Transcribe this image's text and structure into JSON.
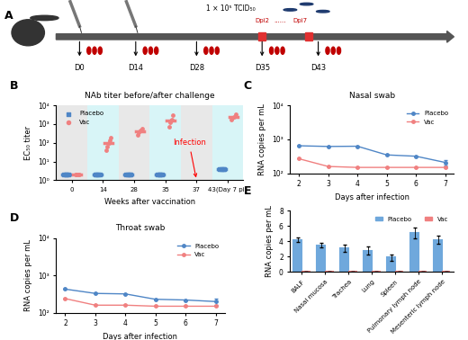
{
  "diagram": {
    "panel": "A",
    "days": [
      "D0",
      "D14",
      "D28",
      "D35",
      "D43"
    ],
    "dose": "1 × 10⁵ TCID₅₀",
    "dpi_start": "Dpi2",
    "dpi_dots": "......",
    "dpi_end": "Dpi7"
  },
  "chart_data": [
    {
      "panel": "B",
      "type": "dot",
      "title": "NAb titer before/after challenge",
      "x_label": "Weeks after vaccination",
      "y_label": "EC₅₀ titer",
      "categories": [
        "0",
        "14",
        "28",
        "35",
        "37",
        "43(Day 7 pi)"
      ],
      "log": "y",
      "ylim": [
        1,
        10000
      ],
      "yticks": [
        {
          "value": 1,
          "label": "10⁰"
        },
        {
          "value": 10,
          "label": "10¹"
        },
        {
          "value": 100,
          "label": "10²"
        },
        {
          "value": 1000,
          "label": "10³"
        },
        {
          "value": 10000,
          "label": "10⁴"
        }
      ],
      "annotation": {
        "text": "Infection",
        "category": "37"
      },
      "legend": "upper left",
      "series": [
        {
          "name": "Placebo",
          "color": "#4f86c6",
          "marker": "square",
          "values": [
            2,
            2,
            2,
            2,
            null,
            4
          ],
          "points": [
            [
              2,
              2,
              2,
              2
            ],
            [
              2,
              2,
              2,
              2
            ],
            [
              2,
              2,
              2,
              2
            ],
            [
              2,
              2,
              2,
              2
            ],
            [],
            [
              4,
              4,
              4,
              4
            ]
          ]
        },
        {
          "name": "Vac",
          "color": "#f08080",
          "marker": "circle",
          "values": [
            2,
            100,
            400,
            1500,
            null,
            2500
          ],
          "points": [
            [
              2,
              2,
              2,
              2
            ],
            [
              40,
              60,
              100,
              130,
              200
            ],
            [
              250,
              350,
              450,
              600
            ],
            [
              700,
              1200,
              1500,
              1800,
              3000
            ],
            [],
            [
              1800,
              2200,
              2500,
              3500
            ]
          ]
        }
      ]
    },
    {
      "panel": "C",
      "type": "line",
      "title": "Nasal swab",
      "x_label": "Days after infection",
      "y_label": "RNA copies per mL",
      "x": [
        2,
        3,
        4,
        5,
        6,
        7
      ],
      "xlim": [
        1.7,
        7.3
      ],
      "xticks": [
        2,
        3,
        4,
        5,
        6,
        7
      ],
      "log": "y",
      "ylim": [
        100,
        10000
      ],
      "yticks": [
        {
          "value": 100,
          "label": "10²"
        },
        {
          "value": 1000,
          "label": "10³"
        },
        {
          "value": 10000,
          "label": "10⁴"
        }
      ],
      "legend": "upper right",
      "series": [
        {
          "name": "Placebo",
          "color": "#4f86c6",
          "marker": "circle",
          "values": [
            650,
            620,
            630,
            350,
            320,
            210
          ],
          "errors": [
            0,
            0,
            0,
            0,
            0,
            40
          ]
        },
        {
          "name": "Vac",
          "color": "#f08080",
          "marker": "circle",
          "values": [
            270,
            160,
            150,
            150,
            150,
            150
          ],
          "errors": [
            0,
            0,
            0,
            0,
            0,
            0
          ]
        }
      ]
    },
    {
      "panel": "D",
      "type": "line",
      "title": "Throat swab",
      "x_label": "Days after infection",
      "y_label": "RNA copies per mL",
      "x": [
        2,
        3,
        4,
        5,
        6,
        7
      ],
      "xlim": [
        1.7,
        7.3
      ],
      "xticks": [
        2,
        3,
        4,
        5,
        6,
        7
      ],
      "log": "y",
      "ylim": [
        100,
        10000
      ],
      "yticks": [
        {
          "value": 100,
          "label": "10²"
        },
        {
          "value": 1000,
          "label": "10³"
        },
        {
          "value": 10000,
          "label": "10⁴"
        }
      ],
      "legend": "upper right",
      "series": [
        {
          "name": "Placebo",
          "color": "#4f86c6",
          "marker": "circle",
          "values": [
            430,
            330,
            320,
            230,
            220,
            200
          ],
          "errors": [
            0,
            0,
            0,
            0,
            0,
            40
          ]
        },
        {
          "name": "Vac",
          "color": "#f08080",
          "marker": "circle",
          "values": [
            240,
            160,
            160,
            150,
            150,
            150
          ],
          "errors": [
            0,
            0,
            0,
            0,
            0,
            0
          ]
        }
      ]
    },
    {
      "panel": "E",
      "type": "bar",
      "y_label": "RNA copies per mL",
      "categories": [
        "BALF",
        "Nasal mucosa",
        "Trachea",
        "Lung",
        "Spleen",
        "Pulmonary lymph node",
        "Mesenteric lymph node"
      ],
      "ylim": [
        0,
        8
      ],
      "yticks": [
        0,
        2,
        4,
        6,
        8
      ],
      "legend": "upper right",
      "series": [
        {
          "name": "Placebo",
          "color": "#6fa8dc",
          "values": [
            4.2,
            3.5,
            3.1,
            2.8,
            1.9,
            5.1,
            4.2
          ],
          "errors": [
            0.3,
            0.3,
            0.5,
            0.5,
            0.4,
            0.7,
            0.5
          ]
        },
        {
          "name": "Vac",
          "color": "#f08080",
          "values": [
            0,
            0,
            0,
            0,
            0,
            0,
            0
          ],
          "errors": [
            0,
            0,
            0,
            0,
            0,
            0,
            0
          ]
        }
      ]
    }
  ]
}
